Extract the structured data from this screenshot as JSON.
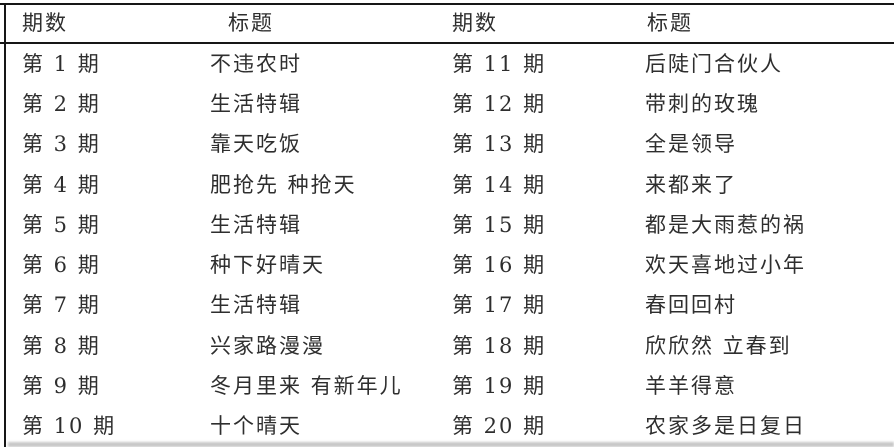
{
  "table": {
    "headers": {
      "ep_left": "期数",
      "title_left": "标题",
      "ep_right": "期数",
      "title_right": "标题"
    },
    "rows": [
      {
        "ep_left": "第 1 期",
        "title_left": "不违农时",
        "ep_right": "第 11 期",
        "title_right": "后陡门合伙人"
      },
      {
        "ep_left": "第 2 期",
        "title_left": "生活特辑",
        "ep_right": "第 12 期",
        "title_right": "带刺的玫瑰"
      },
      {
        "ep_left": "第 3 期",
        "title_left": "靠天吃饭",
        "ep_right": "第 13 期",
        "title_right": "全是领导"
      },
      {
        "ep_left": "第 4 期",
        "title_left": "肥抢先 种抢天",
        "ep_right": "第 14 期",
        "title_right": "来都来了"
      },
      {
        "ep_left": "第 5 期",
        "title_left": "生活特辑",
        "ep_right": "第 15 期",
        "title_right": "都是大雨惹的祸"
      },
      {
        "ep_left": "第 6 期",
        "title_left": "种下好晴天",
        "ep_right": "第 16 期",
        "title_right": "欢天喜地过小年"
      },
      {
        "ep_left": "第 7 期",
        "title_left": "生活特辑",
        "ep_right": "第 17 期",
        "title_right": "春回回村"
      },
      {
        "ep_left": "第 8 期",
        "title_left": "兴家路漫漫",
        "ep_right": "第 18 期",
        "title_right": "欣欣然 立春到"
      },
      {
        "ep_left": "第 9 期",
        "title_left": "冬月里来 有新年儿",
        "ep_right": "第 19 期",
        "title_right": "羊羊得意"
      },
      {
        "ep_left": "第 10 期",
        "title_left": "十个晴天",
        "ep_right": "第 20 期",
        "title_right": "农家多是日复日"
      }
    ],
    "colors": {
      "background": "#ffffff",
      "text": "#2e2e2e",
      "rule": "#161616",
      "bottom_band": "#c7c7c7"
    }
  }
}
